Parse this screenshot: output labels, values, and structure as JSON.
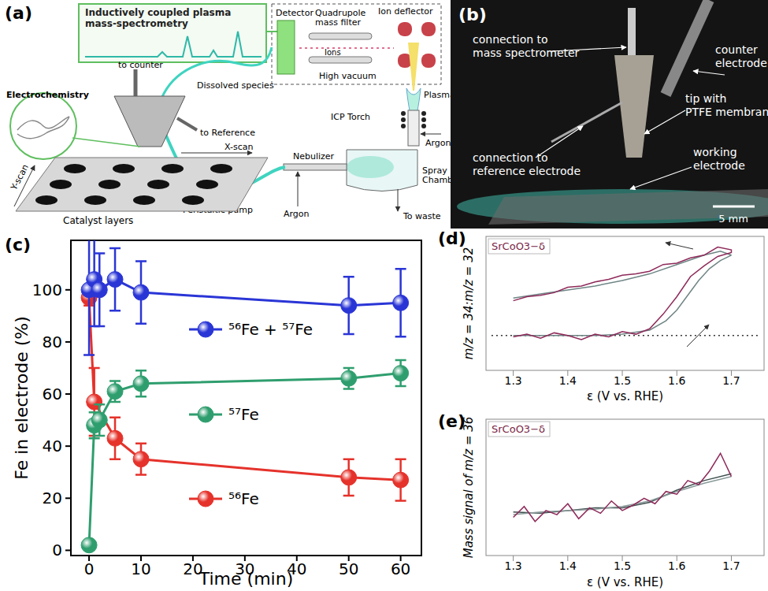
{
  "chart_data": [
    {
      "type": "line",
      "title": "(c)",
      "xlabel": "Time (min)",
      "ylabel": "Fe in electrode (%)",
      "xlim": [
        -3.5,
        64
      ],
      "ylim": [
        -2,
        119
      ],
      "xticks": [
        0,
        10,
        20,
        30,
        40,
        50,
        60
      ],
      "yticks": [
        0,
        20,
        40,
        60,
        80,
        100
      ],
      "marker": "circle",
      "legend": "center",
      "series": [
        {
          "name": "⁵⁶Fe + ⁵⁷Fe",
          "color": "#2a35d6",
          "x": [
            0,
            1,
            2,
            5,
            10,
            50,
            60
          ],
          "values": [
            100,
            104,
            100,
            104,
            99,
            94,
            95
          ],
          "errors": [
            25,
            18,
            14,
            12,
            12,
            11,
            13
          ]
        },
        {
          "name": "⁵⁷Fe",
          "color": "#2f9e6e",
          "x": [
            0,
            1,
            2,
            5,
            10,
            50,
            60
          ],
          "values": [
            2,
            48,
            50,
            61,
            64,
            66,
            68
          ],
          "errors": [
            1,
            5,
            6,
            4,
            5,
            4,
            5
          ]
        },
        {
          "name": "⁵⁶Fe",
          "color": "#e5322b",
          "x": [
            0,
            1,
            5,
            10,
            50,
            60
          ],
          "values": [
            97,
            57,
            43,
            35,
            28,
            27
          ],
          "errors": [
            3,
            13,
            8,
            6,
            7,
            8
          ]
        }
      ]
    },
    {
      "type": "line",
      "title": "(d)",
      "annotations": [
        "SrCoO3−δ"
      ],
      "xlabel": "ε (V vs. RHE)",
      "ylabel": "m/z = 34:m/z = 32",
      "xlim": [
        1.25,
        1.76
      ],
      "ylim": [
        0,
        1
      ],
      "xticks": [
        1.3,
        1.4,
        1.5,
        1.6,
        1.7
      ],
      "tick_labels": "x",
      "series": [
        {
          "color": "#8e2a5a",
          "x": [
            1.3,
            1.325,
            1.35,
            1.375,
            1.4,
            1.425,
            1.45,
            1.475,
            1.5,
            1.525,
            1.55,
            1.575,
            1.6,
            1.625,
            1.65,
            1.675,
            1.7,
            1.7,
            1.675,
            1.65,
            1.625,
            1.6,
            1.575,
            1.55,
            1.525,
            1.5,
            1.475,
            1.45,
            1.425,
            1.4,
            1.375,
            1.35,
            1.325,
            1.3
          ],
          "values": [
            0.25,
            0.27,
            0.24,
            0.28,
            0.26,
            0.23,
            0.27,
            0.25,
            0.29,
            0.27,
            0.31,
            0.42,
            0.55,
            0.7,
            0.78,
            0.85,
            0.88,
            0.9,
            0.92,
            0.86,
            0.84,
            0.8,
            0.79,
            0.74,
            0.72,
            0.71,
            0.68,
            0.66,
            0.63,
            0.62,
            0.58,
            0.56,
            0.55,
            0.52
          ]
        },
        {
          "color": "#6f8585",
          "x": [
            1.3,
            1.4,
            1.45,
            1.5,
            1.55,
            1.58,
            1.6,
            1.62,
            1.64,
            1.66,
            1.68,
            1.7
          ],
          "values": [
            0.26,
            0.26,
            0.26,
            0.27,
            0.3,
            0.37,
            0.45,
            0.56,
            0.67,
            0.76,
            0.82,
            0.86
          ]
        },
        {
          "color": "#6f8585",
          "x": [
            1.7,
            1.68,
            1.65,
            1.6,
            1.55,
            1.5,
            1.45,
            1.4,
            1.35,
            1.3
          ],
          "values": [
            0.86,
            0.89,
            0.86,
            0.79,
            0.72,
            0.67,
            0.63,
            0.6,
            0.57,
            0.54
          ]
        },
        {
          "color": "#333333",
          "line_style": "dotted",
          "x": [
            1.26,
            1.75
          ],
          "values": [
            0.26,
            0.26
          ]
        }
      ]
    },
    {
      "type": "line",
      "title": "(e)",
      "annotations": [
        "SrCoO3−δ"
      ],
      "xlabel": "ε (V vs. RHE)",
      "ylabel": "Mass signal of m/z = 36",
      "xlim": [
        1.25,
        1.76
      ],
      "ylim": [
        0,
        1
      ],
      "xticks": [
        1.3,
        1.4,
        1.5,
        1.6,
        1.7
      ],
      "tick_labels": "x",
      "series": [
        {
          "color": "#8e2a5a",
          "x": [
            1.3,
            1.32,
            1.34,
            1.36,
            1.38,
            1.4,
            1.42,
            1.44,
            1.46,
            1.48,
            1.5,
            1.52,
            1.54,
            1.56,
            1.58,
            1.6,
            1.62,
            1.64,
            1.66,
            1.68,
            1.7
          ],
          "values": [
            0.28,
            0.36,
            0.25,
            0.33,
            0.3,
            0.38,
            0.27,
            0.35,
            0.31,
            0.4,
            0.33,
            0.37,
            0.42,
            0.38,
            0.47,
            0.45,
            0.55,
            0.52,
            0.62,
            0.75,
            0.58
          ]
        },
        {
          "color": "#8a9a9a",
          "x": [
            1.3,
            1.35,
            1.4,
            1.45,
            1.5,
            1.55,
            1.6,
            1.65,
            1.7
          ],
          "values": [
            0.3,
            0.32,
            0.33,
            0.34,
            0.36,
            0.4,
            0.47,
            0.53,
            0.58
          ]
        },
        {
          "color": "#3f4f4f",
          "x": [
            1.3,
            1.35,
            1.4,
            1.45,
            1.5,
            1.55,
            1.6,
            1.65,
            1.7
          ],
          "values": [
            0.32,
            0.31,
            0.33,
            0.35,
            0.35,
            0.39,
            0.48,
            0.55,
            0.6
          ]
        }
      ]
    }
  ],
  "diagram": {
    "panel": "(a)",
    "icp_title": [
      "Inductively coupled plasma",
      "mass-spectrometry"
    ],
    "detector": "Detector",
    "quadrupole": [
      "Quadrupole",
      "mass filter"
    ],
    "ion_deflector": "Ion deflector",
    "ions": "Ions",
    "high_vacuum": "High vacuum",
    "dissolved_species": "Dissolved species",
    "to_counter": "to counter",
    "to_reference": "to Reference",
    "electrochemistry": "Electrochemistry",
    "x_scan": "X-scan",
    "y_scan": "Y-scan",
    "catalyst_layers": "Catalyst layers",
    "peristaltic_pump": "Peristaltic pump",
    "nebulizer": "Nebulizer",
    "icp_torch": "ICP Torch",
    "argon_torch": "Argon",
    "plasma": "Plasma",
    "spray_chamber": [
      "Spray",
      "Chamber"
    ],
    "to_waste": "To waste",
    "argon_nebulizer": "Argon"
  },
  "photo": {
    "panel": "(b)",
    "mass_spec": [
      "connection to",
      "mass spectrometer"
    ],
    "counter": [
      "counter",
      "electrode"
    ],
    "tip": [
      "tip with",
      "PTFE membrane"
    ],
    "working": [
      "working",
      "electrode"
    ],
    "reference": [
      "connection to",
      "reference electrode"
    ],
    "scale_bar": "5 mm"
  }
}
